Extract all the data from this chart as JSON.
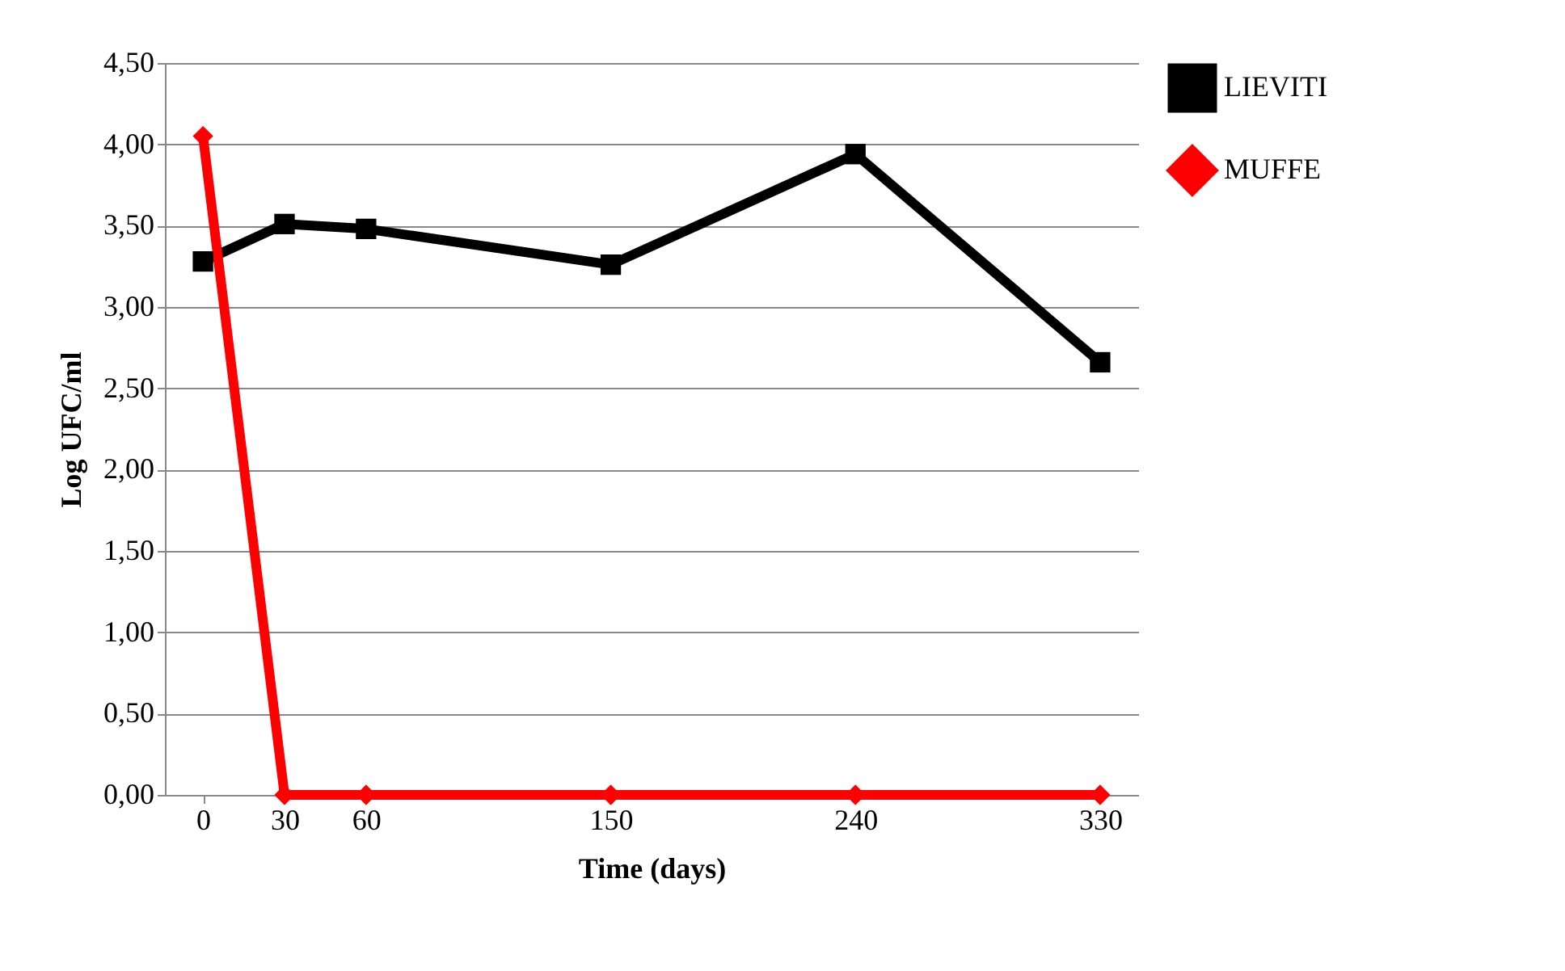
{
  "chart_data": {
    "type": "line",
    "xlabel": "Time (days)",
    "ylabel": "Log UFC/ml",
    "x": [
      0,
      30,
      60,
      150,
      240,
      330
    ],
    "series": [
      {
        "name": "LIEVITI",
        "color": "#000000",
        "marker": "square",
        "values": [
          3.28,
          3.51,
          3.48,
          3.26,
          3.94,
          2.66
        ]
      },
      {
        "name": "MUFFE",
        "color": "#ff0000",
        "marker": "diamond",
        "values": [
          4.05,
          0,
          0,
          0,
          0,
          0
        ]
      }
    ],
    "xlim": [
      -14,
      344
    ],
    "xticks": [
      0,
      30,
      60,
      150,
      240,
      330
    ],
    "ylim": [
      0,
      4.5
    ],
    "yticks": [
      {
        "value": 0,
        "label": "0,00"
      },
      {
        "value": 0.5,
        "label": "0,50"
      },
      {
        "value": 1,
        "label": "1,00"
      },
      {
        "value": 1.5,
        "label": "1,50"
      },
      {
        "value": 2,
        "label": "2,00"
      },
      {
        "value": 2.5,
        "label": "2,50"
      },
      {
        "value": 3,
        "label": "3,00"
      },
      {
        "value": 3.5,
        "label": "3,50"
      },
      {
        "value": 4,
        "label": "4,00"
      },
      {
        "value": 4.5,
        "label": "4,50"
      }
    ],
    "grid": "y",
    "legend": "right",
    "line_style": "solid"
  }
}
